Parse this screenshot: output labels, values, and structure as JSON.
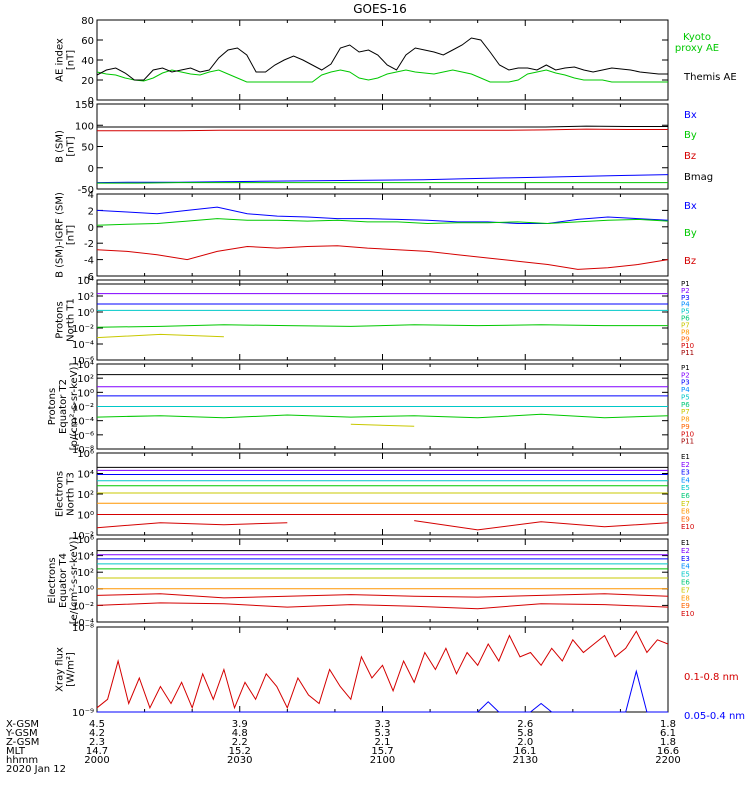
{
  "title": "GOES-16",
  "colors": {
    "black": "#000000",
    "blue": "#0000ff",
    "green": "#00c800",
    "red": "#d40000",
    "cyan": "#00c8c8",
    "yellow": "#c8c800",
    "orange": "#ff9600",
    "purple": "#8000ff"
  },
  "chart_data": [
    {
      "id": "ae",
      "type": "line",
      "ylabel": "AE index\n[nT]",
      "ylim": [
        0,
        80
      ],
      "yticks": [
        0,
        20,
        40,
        60,
        80
      ],
      "legend": [
        "Kyoto\nproxy AE",
        "Themis AE"
      ],
      "series": [
        {
          "name": "Kyoto proxy AE",
          "color": "green",
          "values": [
            28,
            26,
            25,
            22,
            20,
            19,
            22,
            27,
            30,
            28,
            26,
            25,
            28,
            30,
            26,
            22,
            18,
            18,
            18,
            18,
            18,
            18,
            18,
            18,
            25,
            28,
            30,
            28,
            22,
            20,
            22,
            26,
            28,
            30,
            28,
            27,
            26,
            28,
            30,
            28,
            26,
            22,
            18,
            18,
            18,
            20,
            26,
            28,
            30,
            27,
            25,
            22,
            20,
            20,
            20,
            18,
            18,
            18,
            18,
            18,
            18,
            18
          ]
        },
        {
          "name": "Themis AE",
          "color": "black",
          "values": [
            25,
            30,
            32,
            27,
            20,
            20,
            30,
            32,
            28,
            30,
            32,
            28,
            30,
            42,
            50,
            52,
            45,
            28,
            28,
            35,
            40,
            44,
            40,
            35,
            30,
            36,
            52,
            55,
            48,
            50,
            45,
            35,
            30,
            45,
            52,
            50,
            48,
            45,
            50,
            55,
            62,
            60,
            48,
            35,
            30,
            32,
            32,
            30,
            35,
            30,
            32,
            33,
            30,
            28,
            30,
            32,
            31,
            30,
            28,
            27,
            26,
            26
          ]
        }
      ]
    },
    {
      "id": "bsm",
      "type": "line",
      "ylabel": "B (SM)\n[nT]",
      "ylim": [
        -50,
        150
      ],
      "yticks": [
        -50,
        0,
        50,
        100,
        150
      ],
      "legend": [
        "Bx",
        "By",
        "Bz",
        "Bmag"
      ],
      "series": [
        {
          "name": "Bx",
          "color": "blue",
          "values": [
            -35,
            -34,
            -34,
            -33,
            -32,
            -31,
            -30,
            -29,
            -28,
            -26,
            -24,
            -22,
            -20,
            -18,
            -16
          ]
        },
        {
          "name": "By",
          "color": "green",
          "values": [
            -36,
            -36,
            -35,
            -35,
            -35,
            -35,
            -35,
            -35,
            -35,
            -35,
            -35,
            -35,
            -35,
            -35,
            -35
          ]
        },
        {
          "name": "Bz",
          "color": "red",
          "values": [
            87,
            87,
            87,
            88,
            88,
            88,
            88,
            88,
            88,
            88,
            88,
            89,
            91,
            90,
            90
          ]
        },
        {
          "name": "Bmag",
          "color": "black",
          "values": [
            96,
            96,
            96,
            96,
            96,
            96,
            96,
            96,
            96,
            96,
            96,
            96,
            98,
            97,
            97
          ]
        }
      ]
    },
    {
      "id": "bsm_igrf",
      "type": "line",
      "ylabel": "B (SM)-IGRF (SM)\n[nT]",
      "ylim": [
        -6,
        4
      ],
      "yticks": [
        -6,
        -4,
        -2,
        0,
        2,
        4
      ],
      "legend": [
        "Bx",
        "By",
        "Bz"
      ],
      "series": [
        {
          "name": "Bx",
          "color": "blue",
          "values": [
            2.0,
            1.8,
            1.6,
            2.0,
            2.4,
            1.6,
            1.3,
            1.2,
            1.0,
            1.0,
            0.9,
            0.8,
            0.6,
            0.6,
            0.4,
            0.4,
            0.9,
            1.2,
            1.0,
            0.8
          ]
        },
        {
          "name": "By",
          "color": "green",
          "values": [
            0.2,
            0.3,
            0.4,
            0.7,
            1.0,
            0.8,
            0.8,
            0.7,
            0.8,
            0.6,
            0.6,
            0.4,
            0.5,
            0.5,
            0.6,
            0.4,
            0.6,
            0.8,
            0.9,
            0.7
          ]
        },
        {
          "name": "Bz",
          "color": "red",
          "values": [
            -2.8,
            -3.0,
            -3.4,
            -4.0,
            -3.0,
            -2.4,
            -2.6,
            -2.4,
            -2.3,
            -2.6,
            -2.8,
            -3.0,
            -3.4,
            -3.8,
            -4.2,
            -4.6,
            -5.2,
            -5.0,
            -4.6,
            -4.0
          ]
        }
      ]
    },
    {
      "id": "protons_t1",
      "type": "line",
      "ylabel": "Protons\nNorth T1",
      "scale": "log",
      "ylim_exp": [
        -6,
        4
      ],
      "legend": [
        "P1",
        "P2",
        "P3",
        "P4",
        "P5",
        "P6",
        "P7",
        "P8",
        "P9",
        "P10",
        "P11"
      ],
      "series": [
        {
          "name": "P1",
          "color": "black",
          "values": [
            3.5,
            3.5,
            3.5,
            3.5,
            3.5,
            3.5,
            3.5,
            3.5,
            3.5,
            3.5
          ]
        },
        {
          "name": "P2",
          "color": "purple",
          "values": [
            2.3,
            2.3,
            2.3,
            2.3,
            2.3,
            2.3,
            2.3,
            2.3,
            2.3,
            2.3
          ]
        },
        {
          "name": "P3",
          "color": "blue",
          "values": [
            1.0,
            1.0,
            1.0,
            1.0,
            1.0,
            1.0,
            1.0,
            1.0,
            1.0,
            1.0
          ]
        },
        {
          "name": "P4",
          "color": "cyan",
          "values": [
            0.2,
            0.2,
            0.2,
            0.2,
            0.2,
            0.2,
            0.2,
            0.2,
            0.2,
            0.2
          ]
        },
        {
          "name": "P5",
          "color": "green",
          "values": [
            -1.9,
            -1.8,
            -1.6,
            -1.7,
            -1.8,
            -1.6,
            -1.7,
            -1.6,
            -1.7,
            -1.7
          ]
        },
        {
          "name": "P6",
          "color": "yellow",
          "values": [
            -3.2,
            -2.8,
            -3.1,
            null,
            null,
            -3.3,
            null,
            -2.9,
            null,
            -3.3
          ]
        }
      ]
    },
    {
      "id": "protons_t2",
      "type": "line",
      "ylabel": "Protons\nEquator T2\n[p/(cm²-s-sr-keV)]",
      "scale": "log",
      "ylim_exp": [
        -8,
        4
      ],
      "legend": [
        "P1",
        "P2",
        "P3",
        "P4",
        "P5",
        "P6",
        "P7",
        "P8",
        "P9",
        "P10",
        "P11"
      ],
      "series": [
        {
          "name": "P1",
          "color": "black",
          "values": [
            2.5,
            2.5,
            2.5,
            2.5,
            2.5,
            2.5,
            2.5,
            2.5,
            2.5,
            2.5
          ]
        },
        {
          "name": "P2",
          "color": "purple",
          "values": [
            0.8,
            0.8,
            0.8,
            0.8,
            0.8,
            0.8,
            0.8,
            0.8,
            0.8,
            0.8
          ]
        },
        {
          "name": "P3",
          "color": "blue",
          "values": [
            -0.5,
            -0.5,
            -0.5,
            -0.5,
            -0.5,
            -0.5,
            -0.5,
            -0.5,
            -0.5,
            -0.5
          ]
        },
        {
          "name": "P4",
          "color": "cyan",
          "values": [
            -2.0,
            -2.0,
            -2.0,
            -2.0,
            -2.0,
            -2.0,
            -2.0,
            -2.0,
            -2.0,
            -2.0
          ]
        },
        {
          "name": "P5",
          "color": "green",
          "values": [
            -3.5,
            -3.3,
            -3.6,
            -3.2,
            -3.5,
            -3.3,
            -3.6,
            -3.1,
            -3.6,
            -3.3
          ]
        },
        {
          "name": "P6",
          "color": "yellow",
          "values": [
            -4.3,
            null,
            -4.8,
            null,
            -4.5,
            -4.8,
            null,
            -4.3,
            null,
            null
          ]
        }
      ]
    },
    {
      "id": "electrons_t3",
      "type": "line",
      "ylabel": "Electrons\nNorth T3",
      "scale": "log",
      "ylim_exp": [
        -2,
        6
      ],
      "legend": [
        "E1",
        "E2",
        "E3",
        "E4",
        "E5",
        "E6",
        "E7",
        "E8",
        "E9",
        "E10"
      ],
      "series": [
        {
          "name": "E1",
          "color": "black",
          "values": [
            4.6,
            4.6,
            4.6,
            4.6,
            4.6,
            4.6,
            4.6,
            4.6,
            4.6,
            4.6
          ]
        },
        {
          "name": "E2",
          "color": "purple",
          "values": [
            4.3,
            4.3,
            4.3,
            4.3,
            4.3,
            4.3,
            4.3,
            4.3,
            4.3,
            4.3
          ]
        },
        {
          "name": "E3",
          "color": "blue",
          "values": [
            3.9,
            3.9,
            3.9,
            3.9,
            3.9,
            3.9,
            3.9,
            3.9,
            3.9,
            3.9
          ]
        },
        {
          "name": "E4",
          "color": "cyan",
          "values": [
            3.3,
            3.3,
            3.3,
            3.3,
            3.3,
            3.3,
            3.3,
            3.3,
            3.3,
            3.3
          ]
        },
        {
          "name": "E5",
          "color": "green",
          "values": [
            2.8,
            2.8,
            2.8,
            2.8,
            2.8,
            2.8,
            2.8,
            2.8,
            2.8,
            2.8
          ]
        },
        {
          "name": "E6",
          "color": "yellow",
          "values": [
            2.1,
            2.1,
            2.1,
            2.1,
            2.1,
            2.1,
            2.1,
            2.1,
            2.1,
            2.1
          ]
        },
        {
          "name": "E7",
          "color": "orange",
          "values": [
            1.1,
            1.1,
            1.1,
            1.1,
            1.1,
            1.1,
            1.1,
            1.1,
            1.1,
            1.1
          ]
        },
        {
          "name": "E8",
          "color": "red",
          "values": [
            0.0,
            0.0,
            0.0,
            0.0,
            0.0,
            0.0,
            0.0,
            0.0,
            0.0,
            0.0
          ]
        },
        {
          "name": "E10",
          "color": "red",
          "values": [
            -1.3,
            -0.8,
            -1.0,
            -0.8,
            null,
            -0.6,
            -1.5,
            -0.7,
            -1.2,
            -0.8
          ]
        }
      ]
    },
    {
      "id": "electrons_t4",
      "type": "line",
      "ylabel": "Electrons\nEquator T4\n[e/(cm²-s-sr-keV)]",
      "scale": "log",
      "ylim_exp": [
        -4,
        6
      ],
      "legend": [
        "E1",
        "E2",
        "E3",
        "E4",
        "E5",
        "E6",
        "E7",
        "E8",
        "E9",
        "E10"
      ],
      "series": [
        {
          "name": "E1",
          "color": "black",
          "values": [
            4.6,
            4.6,
            4.6,
            4.6,
            4.6,
            4.6,
            4.6,
            4.6,
            4.6,
            4.6
          ]
        },
        {
          "name": "E2",
          "color": "purple",
          "values": [
            4.1,
            4.1,
            4.1,
            4.1,
            4.1,
            4.1,
            4.1,
            4.1,
            4.1,
            4.1
          ]
        },
        {
          "name": "E3",
          "color": "blue",
          "values": [
            3.6,
            3.6,
            3.6,
            3.6,
            3.6,
            3.6,
            3.6,
            3.6,
            3.6,
            3.6
          ]
        },
        {
          "name": "E4",
          "color": "cyan",
          "values": [
            3.0,
            3.0,
            3.0,
            3.0,
            3.0,
            3.0,
            3.0,
            3.0,
            3.0,
            3.0
          ]
        },
        {
          "name": "E5",
          "color": "green",
          "values": [
            2.4,
            2.4,
            2.4,
            2.4,
            2.4,
            2.4,
            2.4,
            2.4,
            2.4,
            2.4
          ]
        },
        {
          "name": "E6",
          "color": "yellow",
          "values": [
            1.3,
            1.3,
            1.3,
            1.3,
            1.3,
            1.3,
            1.3,
            1.3,
            1.3,
            1.3
          ]
        },
        {
          "name": "E7",
          "color": "orange",
          "values": [
            0.0,
            0.0,
            0.0,
            0.0,
            0.0,
            0.0,
            0.0,
            0.0,
            0.0,
            0.0
          ]
        },
        {
          "name": "E8",
          "color": "red",
          "values": [
            -0.8,
            -0.6,
            -1.1,
            -0.9,
            -0.7,
            -0.9,
            -1.0,
            -0.8,
            -0.6,
            -0.9
          ]
        },
        {
          "name": "E9",
          "color": "red",
          "values": [
            -2.0,
            -1.7,
            -1.8,
            -2.2,
            -1.9,
            -2.1,
            -2.4,
            -1.8,
            -1.9,
            -2.2
          ]
        }
      ]
    },
    {
      "id": "xray",
      "type": "line",
      "ylabel": "Xray flux\n[W/m²]",
      "scale": "log",
      "ylim_exp": [
        -9,
        -8
      ],
      "ytick_labels": [
        "10⁻⁹",
        "10⁻⁸"
      ],
      "legend": [
        "0.1-0.8 nm",
        "0.05-0.4 nm"
      ],
      "series": [
        {
          "name": "0.1-0.8 nm",
          "color": "red",
          "values": [
            0.05,
            0.15,
            0.6,
            0.1,
            0.4,
            0.05,
            0.3,
            0.1,
            0.35,
            0.05,
            0.45,
            0.15,
            0.5,
            0.05,
            0.35,
            0.15,
            0.45,
            0.3,
            0.05,
            0.4,
            0.2,
            0.1,
            0.5,
            0.3,
            0.15,
            0.65,
            0.4,
            0.55,
            0.25,
            0.6,
            0.35,
            0.7,
            0.5,
            0.75,
            0.45,
            0.7,
            0.55,
            0.8,
            0.6,
            0.9,
            0.65,
            0.7,
            0.55,
            0.75,
            0.6,
            0.85,
            0.7,
            0.8,
            0.9,
            0.65,
            0.75,
            0.95,
            0.7,
            0.85,
            0.8
          ]
        },
        {
          "name": "0.05-0.4 nm",
          "color": "blue",
          "values": [
            0,
            0,
            0,
            0,
            0,
            0,
            0,
            0,
            0,
            0,
            0,
            0,
            0,
            0,
            0,
            0,
            0,
            0,
            0,
            0,
            0,
            0,
            0,
            0,
            0,
            0,
            0,
            0,
            0,
            0,
            0,
            0,
            0,
            0,
            0,
            0,
            0,
            0.12,
            0,
            0,
            0,
            0,
            0.1,
            0,
            0,
            0,
            0,
            0,
            0,
            0,
            0,
            0.48,
            0,
            0,
            0
          ]
        }
      ]
    }
  ],
  "x_axis": {
    "rows": [
      {
        "label": "X-GSM",
        "values": [
          "4.5",
          "3.9",
          "3.3",
          "2.6",
          "1.8"
        ]
      },
      {
        "label": "Y-GSM",
        "values": [
          "4.2",
          "4.8",
          "5.3",
          "5.8",
          "6.1"
        ]
      },
      {
        "label": "Z-GSM",
        "values": [
          "2.3",
          "2.2",
          "2.1",
          "2.0",
          "1.8"
        ]
      },
      {
        "label": "MLT",
        "values": [
          "14.7",
          "15.2",
          "15.7",
          "16.1",
          "16.6"
        ]
      },
      {
        "label": "hhmm",
        "values": [
          "2000",
          "2030",
          "2100",
          "2130",
          "2200"
        ]
      }
    ],
    "date": "2020 Jan 12"
  }
}
